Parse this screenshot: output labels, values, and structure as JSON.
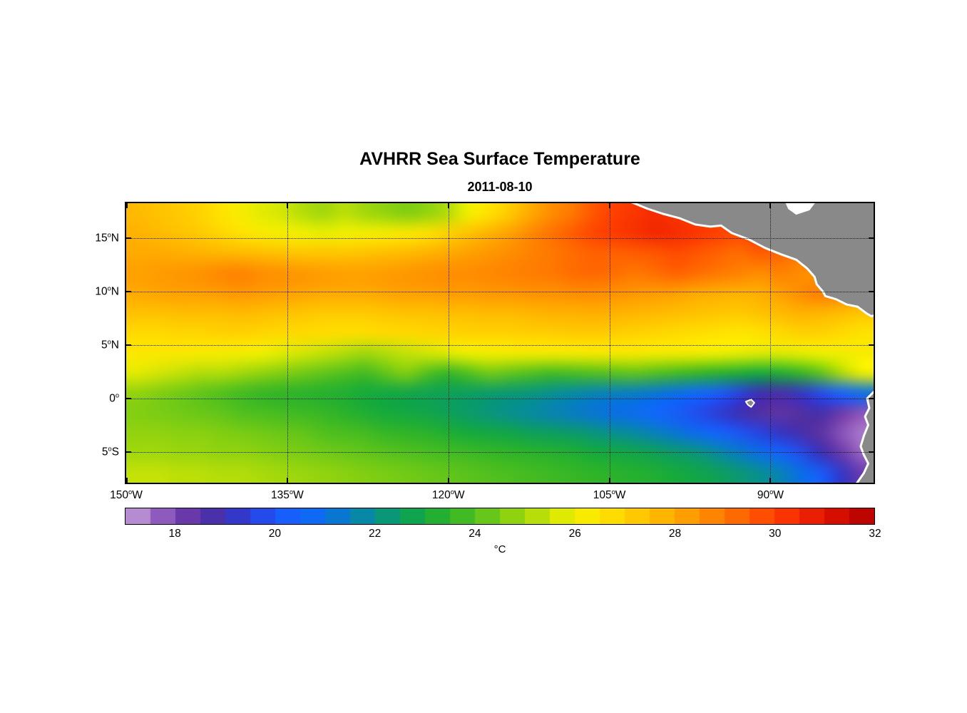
{
  "chart_data": {
    "type": "heatmap",
    "title": "AVHRR Sea Surface Temperature",
    "subtitle": "2011-08-10",
    "degree_mark": "o",
    "grid_style": "dotted",
    "lon_range": [
      -150,
      -80.4
    ],
    "lat_range": [
      -7.9,
      18.3
    ],
    "x_ticks": [
      {
        "value": -150,
        "num": "150",
        "suffix": "W"
      },
      {
        "value": -135,
        "num": "135",
        "suffix": "W"
      },
      {
        "value": -120,
        "num": "120",
        "suffix": "W"
      },
      {
        "value": -105,
        "num": "105",
        "suffix": "W"
      },
      {
        "value": -90,
        "num": "90",
        "suffix": "W"
      }
    ],
    "y_ticks": [
      {
        "value": 15,
        "num": "15",
        "suffix": "N"
      },
      {
        "value": 10,
        "num": "10",
        "suffix": "N"
      },
      {
        "value": 5,
        "num": "5",
        "suffix": "N"
      },
      {
        "value": 0,
        "num": "0",
        "suffix": ""
      },
      {
        "value": -5,
        "num": "5",
        "suffix": "S"
      }
    ],
    "grid_lons": [
      -150,
      -148,
      -146,
      -144,
      -142,
      -140,
      -138,
      -136,
      -134,
      -132,
      -130,
      -128,
      -126,
      -124,
      -122,
      -120,
      -118,
      -116,
      -114,
      -112,
      -110,
      -108,
      -106,
      -104,
      -102,
      -100,
      -98,
      -96,
      -94,
      -92,
      -90,
      -88,
      -86,
      -84,
      -82,
      -80
    ],
    "grid_lats": [
      18,
      16,
      14,
      12,
      10,
      8,
      6,
      4,
      2,
      0,
      -2,
      -4,
      -6,
      -8
    ],
    "sst": [
      [
        27.6,
        27.4,
        27.2,
        27.0,
        26.6,
        26.2,
        25.8,
        25.6,
        25.2,
        25.0,
        25.3,
        25.0,
        24.8,
        24.6,
        24.8,
        25.2,
        26.0,
        26.6,
        27.2,
        28.0,
        28.6,
        29.0,
        29.6,
        30.0,
        30.2,
        30.4,
        30.2,
        30.0,
        29.8,
        29.6,
        29.8,
        29.6,
        29.4,
        29.2,
        29.0,
        28.8
      ],
      [
        27.8,
        27.6,
        27.4,
        27.2,
        26.9,
        26.6,
        26.3,
        26.1,
        26.0,
        25.9,
        26.0,
        26.1,
        26.2,
        26.4,
        26.6,
        27.0,
        27.4,
        27.8,
        28.2,
        28.7,
        29.1,
        29.5,
        29.9,
        30.1,
        30.3,
        30.5,
        30.4,
        30.2,
        30.0,
        29.8,
        30.0,
        29.8,
        29.6,
        29.4,
        29.2,
        29.0
      ],
      [
        28.0,
        28.0,
        27.9,
        27.8,
        27.7,
        27.6,
        27.5,
        27.4,
        27.3,
        27.3,
        27.3,
        27.4,
        27.5,
        27.6,
        27.8,
        28.0,
        28.2,
        28.4,
        28.6,
        28.8,
        29.0,
        29.2,
        29.4,
        29.4,
        29.5,
        29.6,
        29.8,
        29.6,
        29.4,
        29.2,
        29.5,
        29.3,
        29.0,
        28.8,
        28.6,
        28.5
      ],
      [
        28.2,
        28.3,
        28.4,
        28.5,
        28.7,
        28.8,
        28.6,
        28.5,
        28.4,
        28.3,
        28.2,
        28.2,
        28.3,
        28.4,
        28.5,
        28.6,
        28.6,
        28.7,
        28.8,
        28.9,
        29.0,
        29.2,
        29.3,
        29.2,
        29.0,
        29.2,
        29.4,
        29.2,
        29.0,
        28.8,
        28.6,
        28.8,
        28.6,
        28.4,
        28.2,
        28.0
      ],
      [
        28.0,
        28.1,
        28.2,
        28.2,
        28.3,
        28.4,
        28.3,
        28.2,
        28.1,
        28.0,
        28.0,
        28.0,
        28.1,
        28.2,
        28.2,
        28.3,
        28.3,
        28.4,
        28.4,
        28.5,
        28.5,
        28.6,
        28.6,
        28.5,
        28.4,
        28.3,
        28.2,
        28.0,
        27.9,
        27.8,
        27.9,
        28.2,
        28.6,
        28.9,
        28.7,
        28.4
      ],
      [
        27.4,
        27.4,
        27.5,
        27.5,
        27.5,
        27.6,
        27.5,
        27.4,
        27.3,
        27.2,
        27.2,
        27.2,
        27.3,
        27.4,
        27.4,
        27.5,
        27.5,
        27.6,
        27.6,
        27.7,
        27.8,
        27.8,
        27.9,
        27.8,
        27.7,
        27.6,
        27.5,
        27.4,
        27.3,
        27.2,
        27.4,
        27.6,
        27.8,
        27.7,
        27.5,
        27.3
      ],
      [
        26.8,
        26.8,
        26.9,
        26.9,
        27.0,
        27.0,
        26.9,
        26.8,
        26.8,
        26.7,
        26.7,
        26.7,
        26.8,
        26.8,
        26.9,
        26.9,
        27.0,
        27.0,
        27.0,
        27.1,
        27.1,
        27.2,
        27.2,
        27.1,
        27.0,
        26.9,
        26.8,
        26.7,
        26.6,
        26.5,
        26.6,
        26.8,
        27.0,
        27.0,
        26.8,
        26.6
      ],
      [
        26.4,
        26.4,
        26.4,
        26.3,
        26.2,
        26.1,
        26.0,
        25.8,
        25.6,
        25.4,
        25.2,
        25.0,
        25.2,
        25.4,
        25.6,
        25.8,
        26.0,
        26.1,
        26.2,
        26.2,
        26.2,
        26.2,
        26.3,
        26.3,
        26.3,
        26.2,
        26.2,
        26.1,
        26.0,
        25.9,
        25.8,
        25.8,
        25.9,
        26.0,
        26.1,
        26.2
      ],
      [
        25.8,
        25.6,
        25.4,
        25.2,
        25.2,
        25.0,
        24.8,
        24.6,
        24.4,
        24.2,
        24.0,
        23.8,
        24.2,
        24.6,
        24.0,
        23.6,
        24.0,
        24.4,
        24.2,
        24.0,
        23.8,
        23.9,
        24.0,
        24.1,
        24.2,
        24.0,
        23.8,
        23.6,
        23.4,
        23.2,
        23.0,
        23.2,
        23.6,
        24.2,
        25.2,
        26.0
      ],
      [
        24.8,
        24.6,
        24.4,
        24.2,
        24.0,
        23.8,
        23.6,
        23.5,
        23.4,
        23.3,
        23.2,
        23.0,
        22.9,
        22.8,
        22.7,
        22.6,
        22.5,
        22.4,
        22.3,
        22.2,
        22.0,
        21.8,
        21.6,
        21.5,
        21.4,
        21.2,
        21.0,
        20.6,
        20.2,
        19.6,
        19.0,
        18.8,
        19.2,
        19.8,
        20.4,
        21.0
      ],
      [
        24.6,
        24.5,
        24.4,
        24.3,
        24.2,
        24.0,
        23.9,
        23.8,
        23.7,
        23.6,
        23.4,
        23.2,
        23.0,
        22.9,
        22.8,
        22.6,
        22.4,
        22.2,
        22.0,
        21.8,
        21.6,
        21.4,
        21.2,
        21.0,
        20.8,
        20.5,
        20.2,
        19.8,
        19.4,
        19.0,
        18.6,
        18.4,
        18.6,
        18.8,
        18.2,
        17.8
      ],
      [
        24.8,
        24.8,
        24.7,
        24.7,
        24.6,
        24.5,
        24.4,
        24.3,
        24.2,
        24.0,
        23.9,
        23.8,
        23.6,
        23.5,
        23.4,
        23.2,
        23.0,
        22.9,
        22.8,
        22.6,
        22.5,
        22.4,
        22.2,
        22.0,
        21.8,
        21.5,
        21.2,
        20.8,
        20.4,
        20.0,
        19.6,
        19.2,
        18.8,
        18.4,
        17.8,
        17.4
      ],
      [
        25.0,
        25.0,
        24.9,
        24.9,
        24.8,
        24.8,
        24.7,
        24.6,
        24.5,
        24.4,
        24.3,
        24.2,
        24.1,
        24.0,
        23.9,
        23.8,
        23.7,
        23.6,
        23.5,
        23.4,
        23.3,
        23.2,
        23.0,
        22.9,
        22.8,
        22.6,
        22.4,
        22.2,
        21.8,
        21.4,
        21.0,
        20.4,
        19.8,
        19.0,
        18.2,
        17.6
      ],
      [
        25.4,
        25.4,
        25.3,
        25.3,
        25.2,
        25.2,
        25.1,
        25.0,
        24.9,
        24.8,
        24.7,
        24.6,
        24.5,
        24.4,
        24.3,
        24.2,
        24.1,
        24.0,
        23.9,
        23.8,
        23.7,
        23.6,
        23.5,
        23.4,
        23.3,
        23.2,
        23.0,
        22.8,
        22.6,
        22.3,
        22.0,
        21.6,
        21.0,
        20.2,
        19.2,
        18.2
      ]
    ],
    "colorbar": {
      "min": 17,
      "max": 32,
      "step": 0.5,
      "ticks": [
        18,
        20,
        22,
        24,
        26,
        28,
        30,
        32
      ],
      "label": "°C",
      "stops": [
        [
          17.0,
          "#caa3dc"
        ],
        [
          17.5,
          "#a272c8"
        ],
        [
          18.0,
          "#7b42b4"
        ],
        [
          18.5,
          "#58309e"
        ],
        [
          19.0,
          "#3c2fb4"
        ],
        [
          19.5,
          "#2a40dc"
        ],
        [
          20.0,
          "#1e55f5"
        ],
        [
          20.5,
          "#1266ff"
        ],
        [
          21.0,
          "#0a6ee6"
        ],
        [
          21.5,
          "#0880bc"
        ],
        [
          22.0,
          "#079090"
        ],
        [
          22.5,
          "#0c9e60"
        ],
        [
          23.0,
          "#16aa3c"
        ],
        [
          23.5,
          "#30b428"
        ],
        [
          24.0,
          "#52c01e"
        ],
        [
          24.5,
          "#7acc14"
        ],
        [
          25.0,
          "#a2d80c"
        ],
        [
          25.5,
          "#cce406"
        ],
        [
          26.0,
          "#f2f000"
        ],
        [
          26.5,
          "#ffe600"
        ],
        [
          27.0,
          "#ffd200"
        ],
        [
          27.5,
          "#ffbe00"
        ],
        [
          28.0,
          "#ffaa00"
        ],
        [
          28.5,
          "#ff9200"
        ],
        [
          29.0,
          "#ff7800"
        ],
        [
          29.5,
          "#ff5c00"
        ],
        [
          30.0,
          "#ff4000"
        ],
        [
          30.5,
          "#f22800"
        ],
        [
          31.0,
          "#e11400"
        ],
        [
          31.5,
          "#c90800"
        ],
        [
          32.0,
          "#b00000"
        ]
      ]
    },
    "land": {
      "fill": "#898989",
      "stroke": "#ffffff",
      "polygons": [
        {
          "name": "central-america",
          "pts": [
            [
              -103.2,
              18.5
            ],
            [
              -101.5,
              17.8
            ],
            [
              -100.0,
              17.3
            ],
            [
              -98.5,
              16.9
            ],
            [
              -97.0,
              16.3
            ],
            [
              -95.6,
              16.1
            ],
            [
              -94.6,
              16.2
            ],
            [
              -93.6,
              15.5
            ],
            [
              -92.0,
              14.9
            ],
            [
              -90.5,
              14.1
            ],
            [
              -89.0,
              13.5
            ],
            [
              -87.6,
              13.0
            ],
            [
              -86.6,
              12.2
            ],
            [
              -85.9,
              11.4
            ],
            [
              -85.7,
              10.7
            ],
            [
              -85.1,
              10.0
            ],
            [
              -84.9,
              9.6
            ],
            [
              -83.9,
              9.3
            ],
            [
              -82.9,
              8.8
            ],
            [
              -81.9,
              8.6
            ],
            [
              -81.1,
              8.0
            ],
            [
              -80.6,
              7.7
            ],
            [
              -80.0,
              7.9
            ],
            [
              -79.6,
              8.3
            ],
            [
              -79.2,
              8.0
            ],
            [
              -79.2,
              19.0
            ],
            [
              -103.2,
              19.0
            ]
          ]
        },
        {
          "name": "south-america",
          "pts": [
            [
              -79.2,
              1.0
            ],
            [
              -80.4,
              0.6
            ],
            [
              -81.0,
              0.0
            ],
            [
              -80.8,
              -0.9
            ],
            [
              -81.2,
              -1.7
            ],
            [
              -80.9,
              -2.5
            ],
            [
              -81.3,
              -3.5
            ],
            [
              -81.6,
              -4.5
            ],
            [
              -81.3,
              -5.3
            ],
            [
              -80.9,
              -6.1
            ],
            [
              -81.3,
              -7.0
            ],
            [
              -82.0,
              -8.0
            ],
            [
              -82.2,
              -8.6
            ],
            [
              -79.2,
              -8.6
            ]
          ]
        },
        {
          "name": "galapagos-islands",
          "pts": [
            [
              -92.3,
              -0.3
            ],
            [
              -91.8,
              -0.1
            ],
            [
              -91.5,
              -0.4
            ],
            [
              -91.8,
              -0.8
            ],
            [
              -92.1,
              -0.6
            ]
          ]
        }
      ],
      "water_patches": [
        {
          "name": "caribbean-gap",
          "pts": [
            [
              -88.6,
              18.5
            ],
            [
              -85.8,
              18.5
            ],
            [
              -86.4,
              17.7
            ],
            [
              -87.6,
              17.3
            ],
            [
              -88.3,
              17.8
            ]
          ]
        }
      ]
    }
  }
}
